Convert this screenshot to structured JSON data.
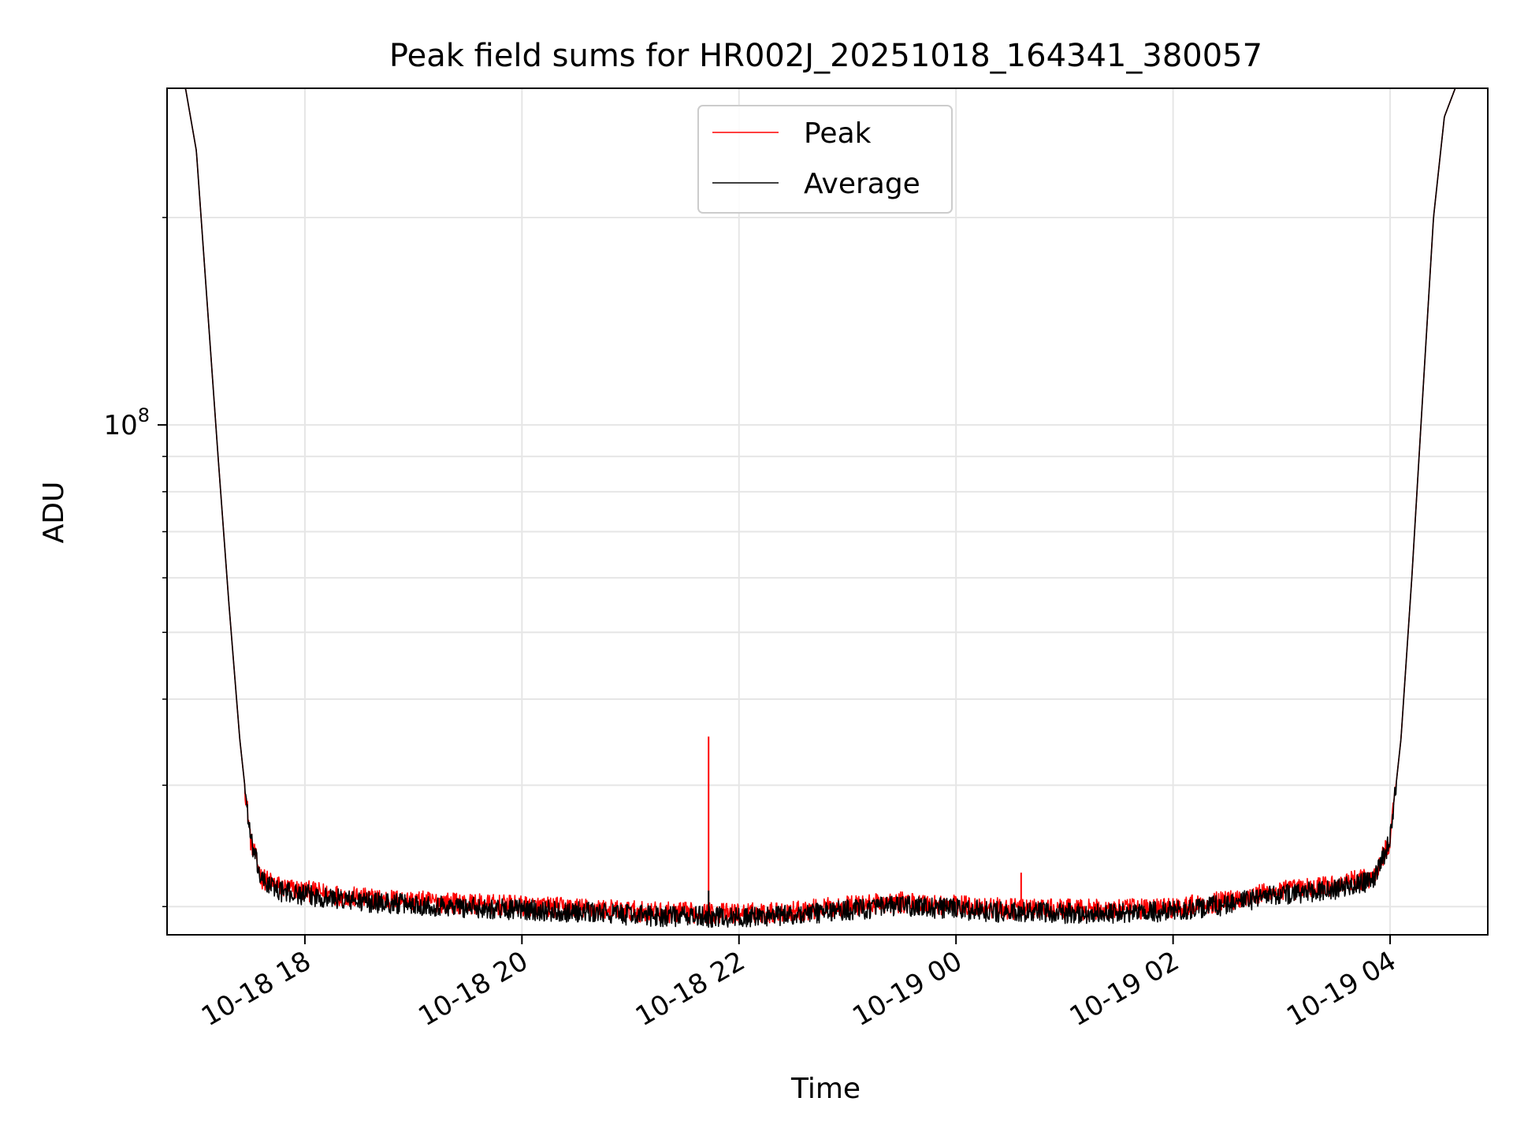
{
  "colors": {
    "peak": "#ff0000",
    "average": "#000000",
    "grid": "#e6e6e6",
    "frame": "#000000",
    "background": "#ffffff"
  },
  "chart_data": {
    "type": "line",
    "title": "Peak field sums for HR002J_20251018_164341_380057",
    "xlabel": "Time",
    "ylabel": "ADU",
    "yscale": "log",
    "ylim": [
      18200000,
      308000000
    ],
    "xlim_hours": [
      16.73,
      28.9
    ],
    "x_unit": "hours since 2025-10-18 00:00",
    "grid": true,
    "legend_position": "upper-center",
    "x_ticks": [
      {
        "hours": 18,
        "label": "10-18 18"
      },
      {
        "hours": 20,
        "label": "10-18 20"
      },
      {
        "hours": 22,
        "label": "10-18 22"
      },
      {
        "hours": 24,
        "label": "10-19 00"
      },
      {
        "hours": 26,
        "label": "10-19 02"
      },
      {
        "hours": 28,
        "label": "10-19 04"
      }
    ],
    "y_major_tick": {
      "value": 100000000,
      "base": "10",
      "exponent": "8"
    },
    "y_minor_ticks": [
      20000000,
      30000000,
      40000000,
      50000000,
      60000000,
      70000000,
      80000000,
      90000000,
      200000000
    ],
    "series": [
      {
        "name": "Peak",
        "color": "#ff0000",
        "noise": 0.035,
        "points": [
          [
            16.73,
            308000000
          ],
          [
            16.9,
            308000000
          ],
          [
            17.0,
            250000000
          ],
          [
            17.1,
            150000000
          ],
          [
            17.2,
            90000000
          ],
          [
            17.3,
            55000000
          ],
          [
            17.4,
            35000000
          ],
          [
            17.5,
            25000000
          ],
          [
            17.6,
            22000000
          ],
          [
            17.8,
            21300000
          ],
          [
            18.5,
            20600000
          ],
          [
            19.5,
            20200000
          ],
          [
            20.5,
            19900000
          ],
          [
            21.2,
            19650000
          ],
          [
            22.0,
            19550000
          ],
          [
            22.5,
            19700000
          ],
          [
            23.0,
            20050000
          ],
          [
            23.5,
            20300000
          ],
          [
            24.0,
            20100000
          ],
          [
            24.5,
            19850000
          ],
          [
            25.5,
            19800000
          ],
          [
            26.0,
            19950000
          ],
          [
            26.5,
            20400000
          ],
          [
            26.9,
            21000000
          ],
          [
            27.5,
            21500000
          ],
          [
            27.85,
            22100000
          ],
          [
            28.0,
            25000000
          ],
          [
            28.1,
            35000000
          ],
          [
            28.2,
            60000000
          ],
          [
            28.3,
            110000000
          ],
          [
            28.4,
            200000000
          ],
          [
            28.5,
            280000000
          ],
          [
            28.6,
            308000000
          ],
          [
            28.9,
            308000000
          ]
        ],
        "spikes": [
          {
            "hours": 21.72,
            "value": 35300000
          },
          {
            "hours": 24.6,
            "value": 22400000
          },
          {
            "hours": 19.55,
            "value": 20700000
          },
          {
            "hours": 23.35,
            "value": 20600000
          }
        ]
      },
      {
        "name": "Average",
        "color": "#000000",
        "noise": 0.035,
        "points": [
          [
            16.73,
            308000000
          ],
          [
            16.9,
            308000000
          ],
          [
            17.0,
            250000000
          ],
          [
            17.1,
            150000000
          ],
          [
            17.2,
            90000000
          ],
          [
            17.3,
            55000000
          ],
          [
            17.4,
            35000000
          ],
          [
            17.5,
            25000000
          ],
          [
            17.6,
            21800000
          ],
          [
            17.8,
            21000000
          ],
          [
            18.5,
            20350000
          ],
          [
            19.5,
            19950000
          ],
          [
            20.5,
            19650000
          ],
          [
            21.2,
            19400000
          ],
          [
            22.0,
            19300000
          ],
          [
            22.5,
            19450000
          ],
          [
            23.0,
            19800000
          ],
          [
            23.5,
            20050000
          ],
          [
            24.0,
            19850000
          ],
          [
            24.5,
            19600000
          ],
          [
            25.5,
            19550000
          ],
          [
            26.0,
            19700000
          ],
          [
            26.5,
            20150000
          ],
          [
            26.9,
            20750000
          ],
          [
            27.5,
            21200000
          ],
          [
            27.85,
            21800000
          ],
          [
            28.0,
            25000000
          ],
          [
            28.1,
            35000000
          ],
          [
            28.2,
            60000000
          ],
          [
            28.3,
            110000000
          ],
          [
            28.4,
            200000000
          ],
          [
            28.5,
            280000000
          ],
          [
            28.6,
            308000000
          ],
          [
            28.9,
            308000000
          ]
        ],
        "spikes": [
          {
            "hours": 21.72,
            "value": 21100000
          },
          {
            "hours": 24.6,
            "value": 20000000
          }
        ]
      }
    ]
  }
}
